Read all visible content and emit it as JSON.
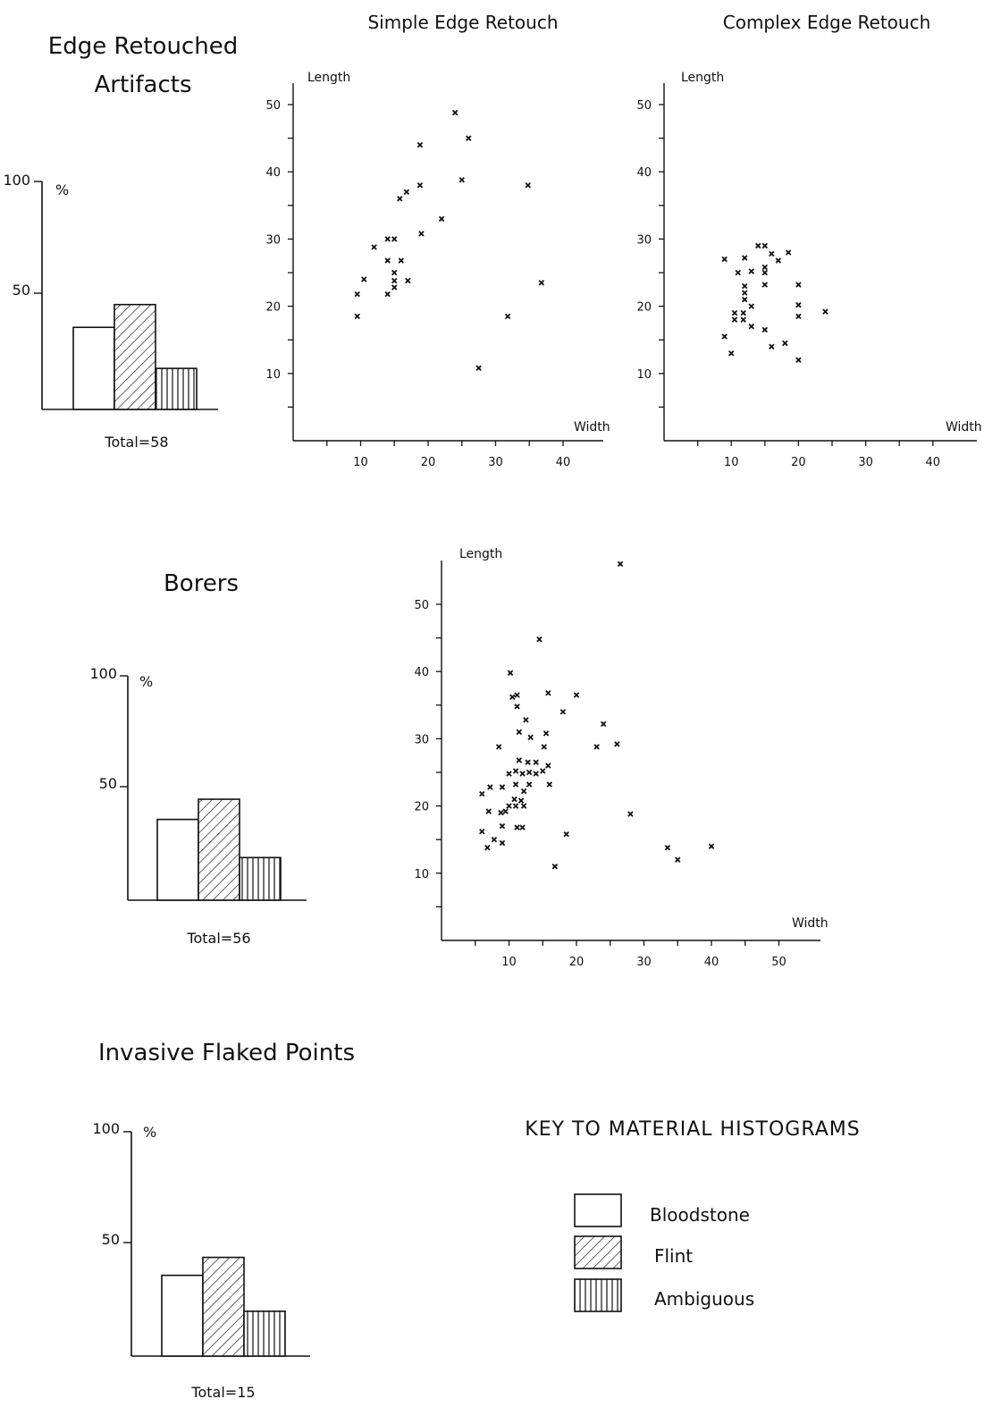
{
  "chart_data": [
    {
      "type": "bar",
      "id": "hist-edge",
      "title": "Edge Retouched Artifacts",
      "title_lines": [
        "Edge Retouched",
        "Artifacts"
      ],
      "ylabel": "%",
      "yticks": [
        "100",
        "50"
      ],
      "ylim": [
        0,
        100
      ],
      "categories": [
        "Bloodstone",
        "Flint",
        "Ambiguous"
      ],
      "values": [
        36,
        46,
        18
      ],
      "total_label": "Total=58"
    },
    {
      "type": "scatter",
      "id": "scatter-simple",
      "title": "Simple Edge Retouch",
      "xlabel": "Width",
      "ylabel": "Length",
      "xlim": [
        0,
        46
      ],
      "ylim": [
        0,
        55
      ],
      "xticks": [
        10,
        20,
        30,
        40
      ],
      "yticks": [
        10,
        20,
        30,
        40,
        50
      ],
      "points": [
        [
          9.5,
          18.5
        ],
        [
          9.5,
          21.8
        ],
        [
          10.5,
          24
        ],
        [
          12,
          28.8
        ],
        [
          14,
          30
        ],
        [
          14,
          26.8
        ],
        [
          14,
          21.8
        ],
        [
          15,
          30
        ],
        [
          15,
          25
        ],
        [
          15,
          23.8
        ],
        [
          15,
          22.8
        ],
        [
          15.8,
          36
        ],
        [
          16,
          26.8
        ],
        [
          16.8,
          37
        ],
        [
          17,
          23.8
        ],
        [
          18.8,
          44
        ],
        [
          18.8,
          38
        ],
        [
          19,
          30.8
        ],
        [
          22,
          33
        ],
        [
          24,
          48.8
        ],
        [
          25,
          38.8
        ],
        [
          26,
          45
        ],
        [
          27.5,
          10.8
        ],
        [
          31.8,
          18.5
        ],
        [
          34.8,
          38
        ],
        [
          36.8,
          23.5
        ]
      ]
    },
    {
      "type": "scatter",
      "id": "scatter-complex",
      "title": "Complex Edge Retouch",
      "xlabel": "Width",
      "ylabel": "Length",
      "xlim": [
        0,
        46
      ],
      "ylim": [
        0,
        55
      ],
      "xticks": [
        10,
        20,
        30,
        40
      ],
      "yticks": [
        10,
        20,
        30,
        40,
        50
      ],
      "points": [
        [
          9,
          27
        ],
        [
          9,
          15.5
        ],
        [
          10,
          13
        ],
        [
          10.5,
          18
        ],
        [
          10.5,
          19
        ],
        [
          11,
          25
        ],
        [
          11.8,
          18
        ],
        [
          11.8,
          19
        ],
        [
          12,
          23
        ],
        [
          12,
          22
        ],
        [
          12,
          21
        ],
        [
          12,
          27.2
        ],
        [
          13,
          25.2
        ],
        [
          13,
          20
        ],
        [
          13,
          17
        ],
        [
          14,
          29
        ],
        [
          15,
          29
        ],
        [
          15,
          25.8
        ],
        [
          15,
          25
        ],
        [
          15,
          23.2
        ],
        [
          15,
          16.5
        ],
        [
          16,
          27.8
        ],
        [
          16,
          14
        ],
        [
          17,
          26.8
        ],
        [
          18,
          14.5
        ],
        [
          18.5,
          28
        ],
        [
          20,
          23.2
        ],
        [
          20,
          20.2
        ],
        [
          20,
          18.5
        ],
        [
          20,
          12
        ],
        [
          24,
          19.2
        ]
      ]
    },
    {
      "type": "bar",
      "id": "hist-borers",
      "title": "Borers",
      "ylabel": "%",
      "yticks": [
        "100",
        "50"
      ],
      "ylim": [
        0,
        100
      ],
      "categories": [
        "Bloodstone",
        "Flint",
        "Ambiguous"
      ],
      "values": [
        36,
        45,
        19
      ],
      "total_label": "Total=56"
    },
    {
      "type": "scatter",
      "id": "scatter-borers",
      "title": "",
      "xlabel": "Width",
      "ylabel": "Length",
      "xlim": [
        0,
        57
      ],
      "ylim": [
        0,
        57
      ],
      "xticks": [
        10,
        20,
        30,
        40,
        50
      ],
      "yticks": [
        10,
        20,
        30,
        40,
        50
      ],
      "points": [
        [
          6,
          16.2
        ],
        [
          6,
          21.8
        ],
        [
          6.8,
          13.8
        ],
        [
          7,
          19.2
        ],
        [
          7.2,
          22.8
        ],
        [
          7.8,
          15
        ],
        [
          8.5,
          28.8
        ],
        [
          8.8,
          19
        ],
        [
          9,
          14.5
        ],
        [
          9,
          17
        ],
        [
          9,
          22.8
        ],
        [
          9.5,
          19.2
        ],
        [
          10,
          20
        ],
        [
          10,
          24.8
        ],
        [
          10.2,
          39.8
        ],
        [
          10.5,
          36.2
        ],
        [
          10.8,
          21
        ],
        [
          11,
          25.2
        ],
        [
          11,
          23.2
        ],
        [
          11,
          20
        ],
        [
          11.2,
          36.5
        ],
        [
          11.2,
          34.8
        ],
        [
          11.2,
          16.8
        ],
        [
          11.5,
          31
        ],
        [
          11.5,
          26.8
        ],
        [
          11.8,
          20.8
        ],
        [
          12,
          24.8
        ],
        [
          12,
          16.8
        ],
        [
          12.2,
          20
        ],
        [
          12.2,
          22.2
        ],
        [
          12.5,
          32.8
        ],
        [
          12.8,
          26.5
        ],
        [
          13,
          23.2
        ],
        [
          13,
          25
        ],
        [
          13.2,
          30.2
        ],
        [
          14,
          26.5
        ],
        [
          14,
          24.8
        ],
        [
          14.5,
          44.8
        ],
        [
          15,
          25.2
        ],
        [
          15.2,
          28.8
        ],
        [
          15.5,
          30.8
        ],
        [
          15.8,
          36.8
        ],
        [
          15.8,
          26
        ],
        [
          16,
          23.2
        ],
        [
          16.8,
          11
        ],
        [
          18,
          34
        ],
        [
          18.5,
          15.8
        ],
        [
          20,
          36.5
        ],
        [
          23,
          28.8
        ],
        [
          24,
          32.2
        ],
        [
          26,
          29.2
        ],
        [
          26.5,
          56
        ],
        [
          28,
          18.8
        ],
        [
          33.5,
          13.8
        ],
        [
          35,
          12
        ],
        [
          40,
          14
        ]
      ]
    },
    {
      "type": "bar",
      "id": "hist-points",
      "title": "Invasive Flaked Points",
      "ylabel": "%",
      "yticks": [
        "100",
        "50"
      ],
      "ylim": [
        0,
        100
      ],
      "categories": [
        "Bloodstone",
        "Flint",
        "Ambiguous"
      ],
      "values": [
        36,
        44,
        20
      ],
      "total_label": "Total=15"
    }
  ],
  "key": {
    "title": "KEY TO MATERIAL HISTOGRAMS",
    "items": [
      {
        "label": "Bloodstone",
        "pattern": "blank"
      },
      {
        "label": "Flint",
        "pattern": "diagonal"
      },
      {
        "label": "Ambiguous",
        "pattern": "vertical"
      }
    ]
  },
  "colors": {
    "ink": "#111111",
    "paper": "#ffffff"
  }
}
